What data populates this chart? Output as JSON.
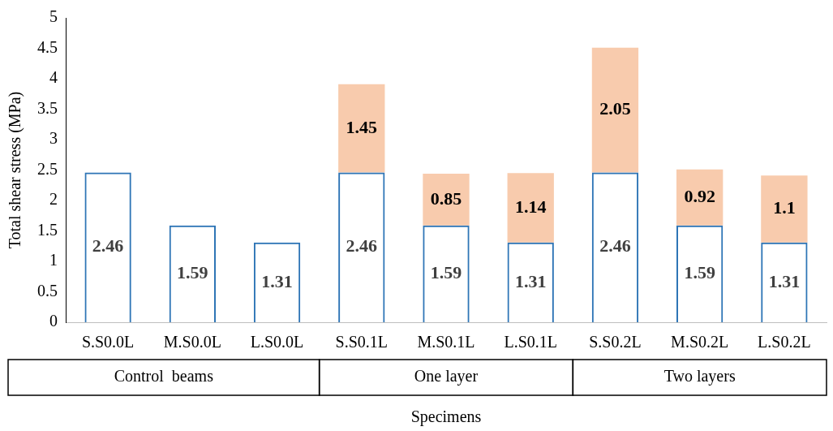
{
  "chart_data": {
    "type": "bar",
    "stacked": true,
    "xlabel": "Specimens",
    "ylabel": "Total shear stress (MPa)",
    "categories": [
      "S.S0.0L",
      "M.S0.0L",
      "L.S0.0L",
      "S.S0.1L",
      "M.S0.1L",
      "L.S0.1L",
      "S.S0.2L",
      "M.S0.2L",
      "L.S0.2L"
    ],
    "series": [
      {
        "color": "#2e75b6",
        "values": [
          2.46,
          1.59,
          1.31,
          2.46,
          1.59,
          1.31,
          2.46,
          1.59,
          1.31
        ]
      },
      {
        "color": "#f8cbad",
        "values": [
          null,
          null,
          null,
          1.45,
          0.85,
          1.14,
          2.05,
          0.92,
          1.1
        ]
      }
    ],
    "ylim": [
      0,
      5
    ],
    "yticks": [
      0,
      0.5,
      1,
      1.5,
      2,
      2.5,
      3,
      3.5,
      4,
      4.5,
      5
    ],
    "grid": false,
    "legend": false,
    "data_labels": true,
    "annotations": [
      "Control  beams",
      "One layer",
      "Two layers"
    ]
  }
}
